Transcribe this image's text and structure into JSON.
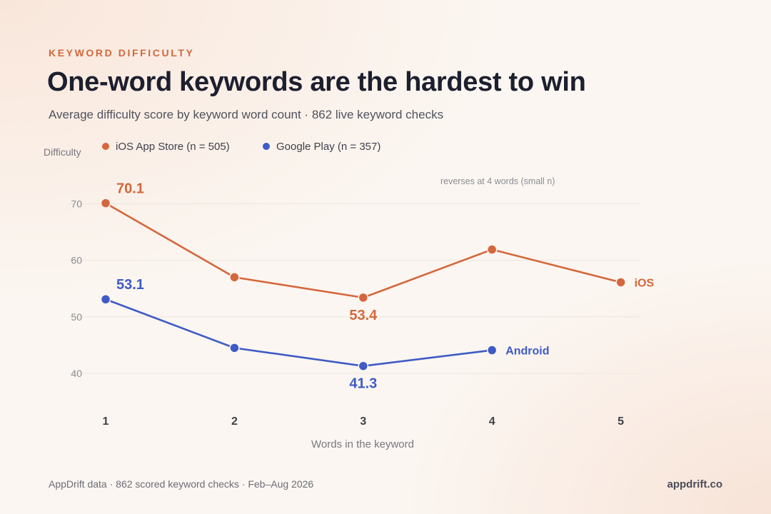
{
  "header": {
    "eyebrow": "KEYWORD DIFFICULTY",
    "title": "One-word keywords are the hardest to win",
    "subtitle": "Average difficulty score by keyword word count · 862 live keyword checks"
  },
  "chart_data": {
    "type": "line",
    "ylabel": "Difficulty",
    "xlabel": "Words in the keyword",
    "x": [
      1,
      2,
      3,
      4,
      5
    ],
    "ylim": [
      35,
      75
    ],
    "yticks": [
      40,
      50,
      60,
      70
    ],
    "grid": true,
    "legend_position": "top-left",
    "series": [
      {
        "name": "iOS App Store (n = 505)",
        "end_label": "iOS",
        "color": "#d4673c",
        "values": [
          70.1,
          57.0,
          53.4,
          61.9,
          56.1
        ],
        "labeled_points": [
          {
            "index": 0,
            "text": "70.1",
            "position": "above-right"
          },
          {
            "index": 2,
            "text": "53.4",
            "position": "below"
          }
        ]
      },
      {
        "name": "Google Play (n = 357)",
        "end_label": "Android",
        "color": "#3e5bc6",
        "values": [
          53.1,
          44.5,
          41.3,
          44.1,
          null
        ],
        "labeled_points": [
          {
            "index": 0,
            "text": "53.1",
            "position": "above-right"
          },
          {
            "index": 2,
            "text": "41.3",
            "position": "below"
          }
        ]
      }
    ],
    "annotations": [
      {
        "text": "reverses at 4 words (small n)",
        "x": 4
      }
    ]
  },
  "footer": {
    "source": "AppDrift data · 862 scored keyword checks · Feb–Aug 2026",
    "brand": "appdrift.co"
  }
}
